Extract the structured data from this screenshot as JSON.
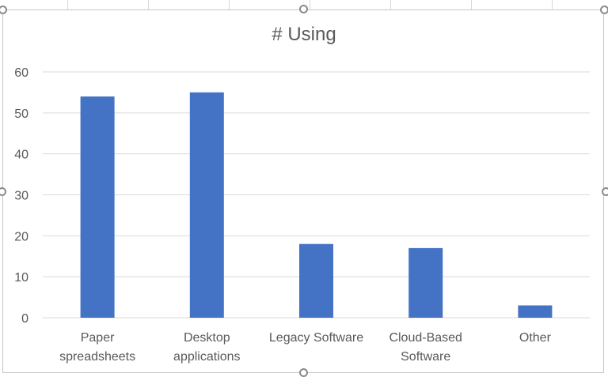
{
  "chart_data": {
    "type": "bar",
    "title": "# Using",
    "xlabel": "",
    "ylabel": "",
    "categories": [
      [
        "Paper",
        "spreadsheets"
      ],
      [
        "Desktop",
        "applications"
      ],
      [
        "Legacy Software"
      ],
      [
        "Cloud-Based",
        "Software"
      ],
      [
        "Other"
      ]
    ],
    "values": [
      54,
      55,
      18,
      17,
      3
    ],
    "ylim": [
      0,
      60
    ],
    "yticks": [
      0,
      10,
      20,
      30,
      40,
      50,
      60
    ],
    "grid": true,
    "legend": "none",
    "bar_color": "#4472c4",
    "grid_color": "#d9d9d9"
  }
}
